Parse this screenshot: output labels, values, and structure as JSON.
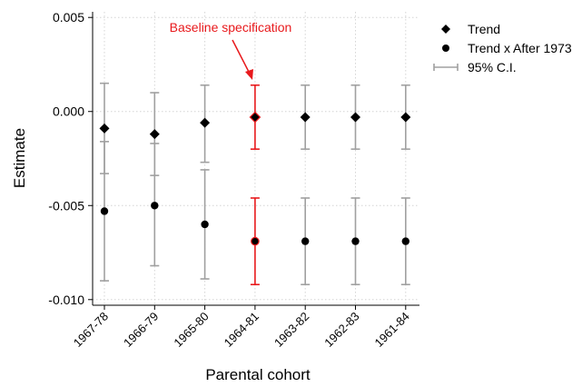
{
  "chart_data": {
    "type": "scatter",
    "title": "",
    "xlabel": "Parental cohort",
    "ylabel": "Estimate",
    "categories": [
      "1967-78",
      "1966-79",
      "1965-80",
      "1964-81",
      "1963-82",
      "1962-83",
      "1961-84"
    ],
    "ylim": [
      -0.0103,
      0.0053
    ],
    "yticks": [
      0.005,
      0.0,
      -0.005,
      -0.01
    ],
    "ytick_labels": [
      "0.005",
      "0.000",
      "-0.005",
      "-0.010"
    ],
    "grid": true,
    "legend_position": "top-right",
    "highlight_index": 3,
    "highlight_color": "#e8191c",
    "ci_color": "#a0a0a0",
    "marker_color": "#000000",
    "annotation": {
      "text": "Baseline specification",
      "color": "#e8191c",
      "target_index": 3
    },
    "series": [
      {
        "name": "Trend",
        "marker": "diamond",
        "values": [
          -0.0009,
          -0.0012,
          -0.0006,
          -0.0003,
          -0.0003,
          -0.0003,
          -0.0003
        ],
        "ci_low": [
          -0.0033,
          -0.0034,
          -0.0027,
          -0.002,
          -0.002,
          -0.002,
          -0.002
        ],
        "ci_high": [
          0.0015,
          0.001,
          0.0014,
          0.0014,
          0.0014,
          0.0014,
          0.0014
        ]
      },
      {
        "name": "Trend x After 1973",
        "marker": "circle",
        "values": [
          -0.0053,
          -0.005,
          -0.006,
          -0.0069,
          -0.0069,
          -0.0069,
          -0.0069
        ],
        "ci_low": [
          -0.009,
          -0.0082,
          -0.0089,
          -0.0092,
          -0.0092,
          -0.0092,
          -0.0092
        ],
        "ci_high": [
          -0.0016,
          -0.0017,
          -0.0031,
          -0.0046,
          -0.0046,
          -0.0046,
          -0.0046
        ]
      }
    ],
    "legend": [
      {
        "label": "Trend",
        "symbol": "diamond"
      },
      {
        "label": "Trend x After 1973",
        "symbol": "circle"
      },
      {
        "label": "95% C.I.",
        "symbol": "ci"
      }
    ]
  }
}
